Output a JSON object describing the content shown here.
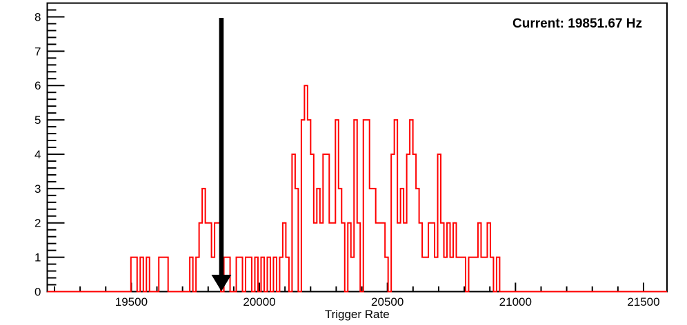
{
  "chart_data": {
    "type": "bar",
    "subtype": "step-histogram",
    "title": "",
    "xlabel": "Trigger Rate",
    "ylabel": "",
    "xlim": [
      19171.67,
      21591.67
    ],
    "ylim": [
      0,
      8.4
    ],
    "x_major_ticks": [
      19500,
      20000,
      20500,
      21000,
      21500
    ],
    "x_minor_step": 100,
    "y_major_ticks": [
      0,
      1,
      2,
      3,
      4,
      5,
      6,
      7,
      8
    ],
    "y_minor_step": 0.2,
    "grid": false,
    "legend": null,
    "series_color": "#ff0000",
    "frame_color": "#000000",
    "bins": {
      "start": 19171.67,
      "width": 12.1,
      "count": 200,
      "heights": [
        0,
        0,
        0,
        0,
        0,
        0,
        0,
        0,
        0,
        0,
        0,
        0,
        0,
        0,
        0,
        0,
        0,
        0,
        0,
        0,
        0,
        0,
        0,
        0,
        0,
        0,
        0,
        1,
        1,
        0,
        1,
        0,
        1,
        0,
        0,
        0,
        1,
        1,
        1,
        0,
        0,
        0,
        0,
        0,
        0,
        0,
        1,
        0,
        1,
        2,
        3,
        2,
        2,
        1,
        2,
        2,
        0,
        1,
        1,
        0,
        0,
        1,
        1,
        0,
        1,
        1,
        0,
        1,
        0,
        1,
        0,
        1,
        0,
        1,
        0,
        1,
        2,
        1,
        0,
        4,
        3,
        0,
        5,
        6,
        5,
        4,
        2,
        3,
        2,
        4,
        4,
        2,
        2,
        5,
        3,
        2,
        0,
        2,
        1,
        5,
        2,
        0,
        5,
        5,
        3,
        3,
        2,
        2,
        2,
        1,
        0,
        4,
        5,
        2,
        3,
        2,
        4,
        5,
        4,
        3,
        2,
        1,
        1,
        2,
        2,
        1,
        4,
        2,
        1,
        2,
        1,
        2,
        1,
        1,
        1,
        0,
        1,
        1,
        1,
        2,
        1,
        1,
        2,
        1,
        0,
        1,
        0,
        0,
        0,
        0,
        0,
        0,
        0,
        0,
        0,
        0,
        0,
        0,
        0,
        0,
        0,
        0,
        0,
        0,
        0,
        0,
        0,
        0,
        0,
        0,
        0,
        0,
        0,
        0,
        0,
        0,
        0,
        0,
        0,
        0,
        0,
        0,
        0,
        0,
        0,
        0,
        0,
        0,
        0,
        0,
        0,
        0,
        0,
        0,
        0,
        0,
        0,
        0,
        0,
        0
      ]
    },
    "annotations": {
      "current_label": "Current: 19851.67 Hz",
      "arrow": {
        "x": 19851.67,
        "color": "#000000"
      }
    }
  }
}
